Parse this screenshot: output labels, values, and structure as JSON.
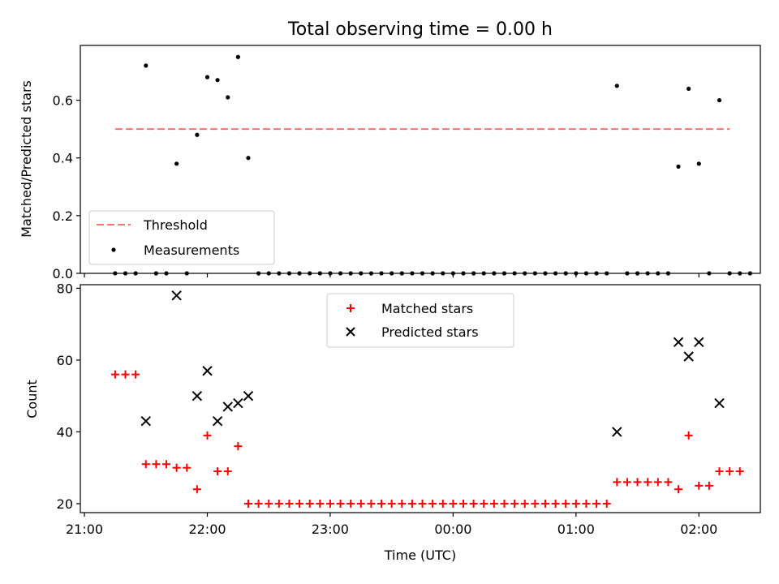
{
  "chart_data": [
    {
      "type": "scatter",
      "title": "Total observing time = 0.00 h",
      "xlabel": "",
      "ylabel": "Matched/Predicted stars",
      "ylim": [
        0.0,
        0.79
      ],
      "yticks": [
        0.0,
        0.2,
        0.4,
        0.6
      ],
      "ytick_labels": [
        "0.0",
        "0.2",
        "0.4",
        "0.6"
      ],
      "legend_position": "lower-left",
      "threshold": {
        "name": "Threshold",
        "value": 0.5,
        "x_start": "21:15",
        "x_end": "02:15",
        "color": "#ff7070"
      },
      "series": [
        {
          "name": "Measurements",
          "color": "#000000",
          "marker": "dot",
          "points": [
            [
              "21:15",
              0
            ],
            [
              "21:20",
              0
            ],
            [
              "21:25",
              0
            ],
            [
              "21:30",
              0.72
            ],
            [
              "21:35",
              0
            ],
            [
              "21:40",
              0
            ],
            [
              "21:45",
              0.38
            ],
            [
              "21:50",
              0
            ],
            [
              "21:55",
              0.48
            ],
            [
              "22:00",
              0.68
            ],
            [
              "22:05",
              0.67
            ],
            [
              "22:10",
              0.61
            ],
            [
              "22:15",
              0.75
            ],
            [
              "22:20",
              0.4
            ],
            [
              "22:25",
              0
            ],
            [
              "22:30",
              0
            ],
            [
              "22:35",
              0
            ],
            [
              "22:40",
              0
            ],
            [
              "22:45",
              0
            ],
            [
              "22:50",
              0
            ],
            [
              "22:55",
              0
            ],
            [
              "23:00",
              0
            ],
            [
              "23:05",
              0
            ],
            [
              "23:10",
              0
            ],
            [
              "23:15",
              0
            ],
            [
              "23:20",
              0
            ],
            [
              "23:25",
              0
            ],
            [
              "23:30",
              0
            ],
            [
              "23:35",
              0
            ],
            [
              "23:40",
              0
            ],
            [
              "23:45",
              0
            ],
            [
              "23:50",
              0
            ],
            [
              "23:55",
              0
            ],
            [
              "00:00",
              0
            ],
            [
              "00:05",
              0
            ],
            [
              "00:10",
              0
            ],
            [
              "00:15",
              0
            ],
            [
              "00:20",
              0
            ],
            [
              "00:25",
              0
            ],
            [
              "00:30",
              0
            ],
            [
              "00:35",
              0
            ],
            [
              "00:40",
              0
            ],
            [
              "00:45",
              0
            ],
            [
              "00:50",
              0
            ],
            [
              "00:55",
              0
            ],
            [
              "01:00",
              0
            ],
            [
              "01:05",
              0
            ],
            [
              "01:10",
              0
            ],
            [
              "01:15",
              0
            ],
            [
              "01:20",
              0.65
            ],
            [
              "01:25",
              0
            ],
            [
              "01:30",
              0
            ],
            [
              "01:35",
              0
            ],
            [
              "01:40",
              0
            ],
            [
              "01:45",
              0
            ],
            [
              "01:50",
              0.37
            ],
            [
              "01:55",
              0.64
            ],
            [
              "02:00",
              0.38
            ],
            [
              "02:05",
              0
            ],
            [
              "02:10",
              0.6
            ],
            [
              "02:15",
              0
            ],
            [
              "02:20",
              0
            ],
            [
              "02:25",
              0
            ]
          ]
        }
      ]
    },
    {
      "type": "scatter",
      "title": "",
      "xlabel": "Time (UTC)",
      "ylabel": "Count",
      "ylim": [
        17.5,
        81
      ],
      "yticks": [
        20,
        40,
        60,
        80
      ],
      "ytick_labels": [
        "20",
        "40",
        "60",
        "80"
      ],
      "xlim": [
        "20:58",
        "02:30"
      ],
      "xticks": [
        "21:00",
        "22:00",
        "23:00",
        "00:00",
        "01:00",
        "02:00"
      ],
      "xtick_labels": [
        "21:00",
        "22:00",
        "23:00",
        "00:00",
        "01:00",
        "02:00"
      ],
      "legend_position": "upper-center",
      "series": [
        {
          "name": "Matched stars",
          "color": "#ff0000",
          "marker": "plus",
          "points": [
            [
              "21:15",
              56
            ],
            [
              "21:20",
              56
            ],
            [
              "21:25",
              56
            ],
            [
              "21:30",
              31
            ],
            [
              "21:35",
              31
            ],
            [
              "21:40",
              31
            ],
            [
              "21:45",
              30
            ],
            [
              "21:50",
              30
            ],
            [
              "21:55",
              24
            ],
            [
              "22:00",
              39
            ],
            [
              "22:05",
              29
            ],
            [
              "22:10",
              29
            ],
            [
              "22:15",
              36
            ],
            [
              "22:20",
              20
            ],
            [
              "22:25",
              20
            ],
            [
              "22:30",
              20
            ],
            [
              "22:35",
              20
            ],
            [
              "22:40",
              20
            ],
            [
              "22:45",
              20
            ],
            [
              "22:50",
              20
            ],
            [
              "22:55",
              20
            ],
            [
              "23:00",
              20
            ],
            [
              "23:05",
              20
            ],
            [
              "23:10",
              20
            ],
            [
              "23:15",
              20
            ],
            [
              "23:20",
              20
            ],
            [
              "23:25",
              20
            ],
            [
              "23:30",
              20
            ],
            [
              "23:35",
              20
            ],
            [
              "23:40",
              20
            ],
            [
              "23:45",
              20
            ],
            [
              "23:50",
              20
            ],
            [
              "23:55",
              20
            ],
            [
              "00:00",
              20
            ],
            [
              "00:05",
              20
            ],
            [
              "00:10",
              20
            ],
            [
              "00:15",
              20
            ],
            [
              "00:20",
              20
            ],
            [
              "00:25",
              20
            ],
            [
              "00:30",
              20
            ],
            [
              "00:35",
              20
            ],
            [
              "00:40",
              20
            ],
            [
              "00:45",
              20
            ],
            [
              "00:50",
              20
            ],
            [
              "00:55",
              20
            ],
            [
              "01:00",
              20
            ],
            [
              "01:05",
              20
            ],
            [
              "01:10",
              20
            ],
            [
              "01:15",
              20
            ],
            [
              "01:20",
              26
            ],
            [
              "01:25",
              26
            ],
            [
              "01:30",
              26
            ],
            [
              "01:35",
              26
            ],
            [
              "01:40",
              26
            ],
            [
              "01:45",
              26
            ],
            [
              "01:50",
              24
            ],
            [
              "01:55",
              39
            ],
            [
              "02:00",
              25
            ],
            [
              "02:05",
              25
            ],
            [
              "02:10",
              29
            ],
            [
              "02:15",
              29
            ],
            [
              "02:20",
              29
            ]
          ]
        },
        {
          "name": "Predicted stars",
          "color": "#000000",
          "marker": "x",
          "points": [
            [
              "21:30",
              43
            ],
            [
              "21:45",
              78
            ],
            [
              "21:55",
              50
            ],
            [
              "22:00",
              57
            ],
            [
              "22:05",
              43
            ],
            [
              "22:10",
              47
            ],
            [
              "22:15",
              48
            ],
            [
              "22:20",
              50
            ],
            [
              "01:20",
              40
            ],
            [
              "01:50",
              65
            ],
            [
              "01:55",
              61
            ],
            [
              "02:00",
              65
            ],
            [
              "02:10",
              48
            ]
          ]
        }
      ]
    }
  ]
}
